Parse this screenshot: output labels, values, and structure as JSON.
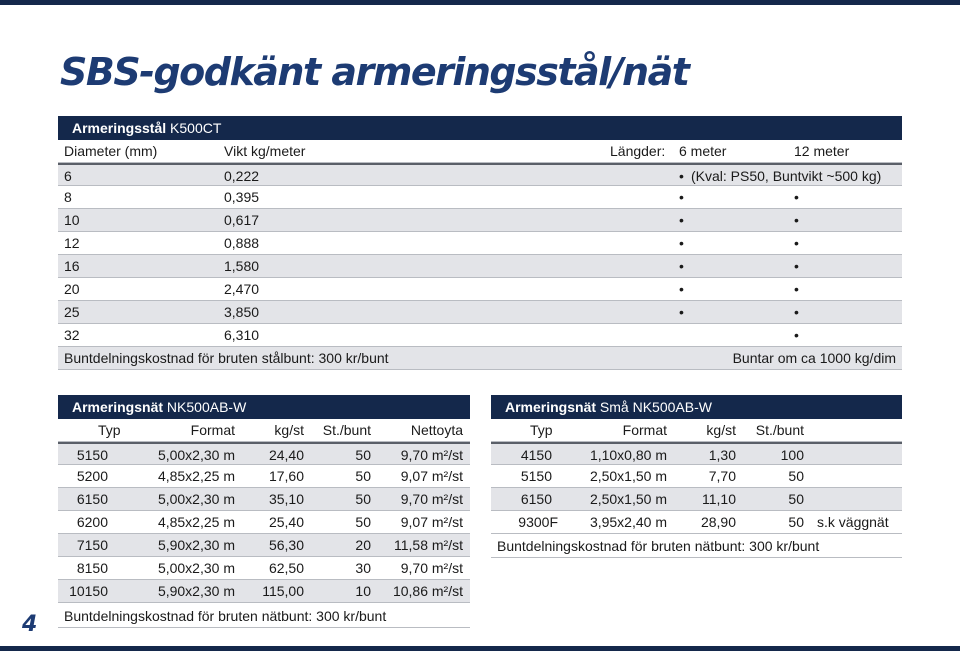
{
  "title": "SBS-godkänt armeringsstål/nät",
  "page_number": "4",
  "steel": {
    "header_bold": "Armeringsstål",
    "header_rest": "K500CT",
    "col_diameter": "Diameter (mm)",
    "col_weight": "Vikt kg/meter",
    "col_lengths": "Längder:",
    "col_6m": "6 meter",
    "col_12m": "12 meter",
    "note_kval": "(Kval: PS50, Buntvikt ~500 kg)",
    "bullet": "•",
    "rows": [
      {
        "d": "6",
        "w": "0,222"
      },
      {
        "d": "8",
        "w": "0,395"
      },
      {
        "d": "10",
        "w": "0,617"
      },
      {
        "d": "12",
        "w": "0,888"
      },
      {
        "d": "16",
        "w": "1,580"
      },
      {
        "d": "20",
        "w": "2,470"
      },
      {
        "d": "25",
        "w": "3,850"
      },
      {
        "d": "32",
        "w": "6,310"
      }
    ],
    "footer_left": "Buntdelningskostnad för bruten stålbunt: 300 kr/bunt",
    "footer_right": "Buntar om ca 1000 kg/dim"
  },
  "mesh": {
    "header_bold": "Armeringsnät",
    "header_rest": "NK500AB-W",
    "cols": {
      "typ": "Typ",
      "format": "Format",
      "kgst": "kg/st",
      "stbunt": "St./bunt",
      "netto": "Nettoyta"
    },
    "rows": [
      {
        "typ": "5150",
        "format": "5,00x2,30 m",
        "kg": "24,40",
        "st": "50",
        "netto": "9,70 m²/st"
      },
      {
        "typ": "5200",
        "format": "4,85x2,25 m",
        "kg": "17,60",
        "st": "50",
        "netto": "9,07 m²/st"
      },
      {
        "typ": "6150",
        "format": "5,00x2,30 m",
        "kg": "35,10",
        "st": "50",
        "netto": "9,70 m²/st"
      },
      {
        "typ": "6200",
        "format": "4,85x2,25 m",
        "kg": "25,40",
        "st": "50",
        "netto": "9,07 m²/st"
      },
      {
        "typ": "7150",
        "format": "5,90x2,30 m",
        "kg": "56,30",
        "st": "20",
        "netto": "11,58 m²/st"
      },
      {
        "typ": "8150",
        "format": "5,00x2,30 m",
        "kg": "62,50",
        "st": "30",
        "netto": "9,70 m²/st"
      },
      {
        "typ": "10150",
        "format": "5,90x2,30 m",
        "kg": "115,00",
        "st": "10",
        "netto": "10,86 m²/st"
      }
    ],
    "footer": "Buntdelningskostnad för bruten nätbunt: 300 kr/bunt"
  },
  "small_mesh": {
    "header_bold": "Armeringsnät",
    "header_rest": "Små NK500AB-W",
    "cols": {
      "typ": "Typ",
      "format": "Format",
      "kgst": "kg/st",
      "stbunt": "St./bunt"
    },
    "rows": [
      {
        "typ": "4150",
        "format": "1,10x0,80 m",
        "kg": "1,30",
        "st": "100",
        "note": ""
      },
      {
        "typ": "5150",
        "format": "2,50x1,50 m",
        "kg": "7,70",
        "st": "50",
        "note": ""
      },
      {
        "typ": "6150",
        "format": "2,50x1,50 m",
        "kg": "11,10",
        "st": "50",
        "note": ""
      },
      {
        "typ": "9300F",
        "format": "3,95x2,40 m",
        "kg": "28,90",
        "st": "50",
        "note": "s.k väggnät"
      }
    ],
    "footer": "Buntdelningskostnad för bruten nätbunt: 300 kr/bunt"
  },
  "colors": {
    "navy": "#14284b",
    "title_blue": "#1d3b73",
    "row_gray": "#e3e4e8"
  }
}
